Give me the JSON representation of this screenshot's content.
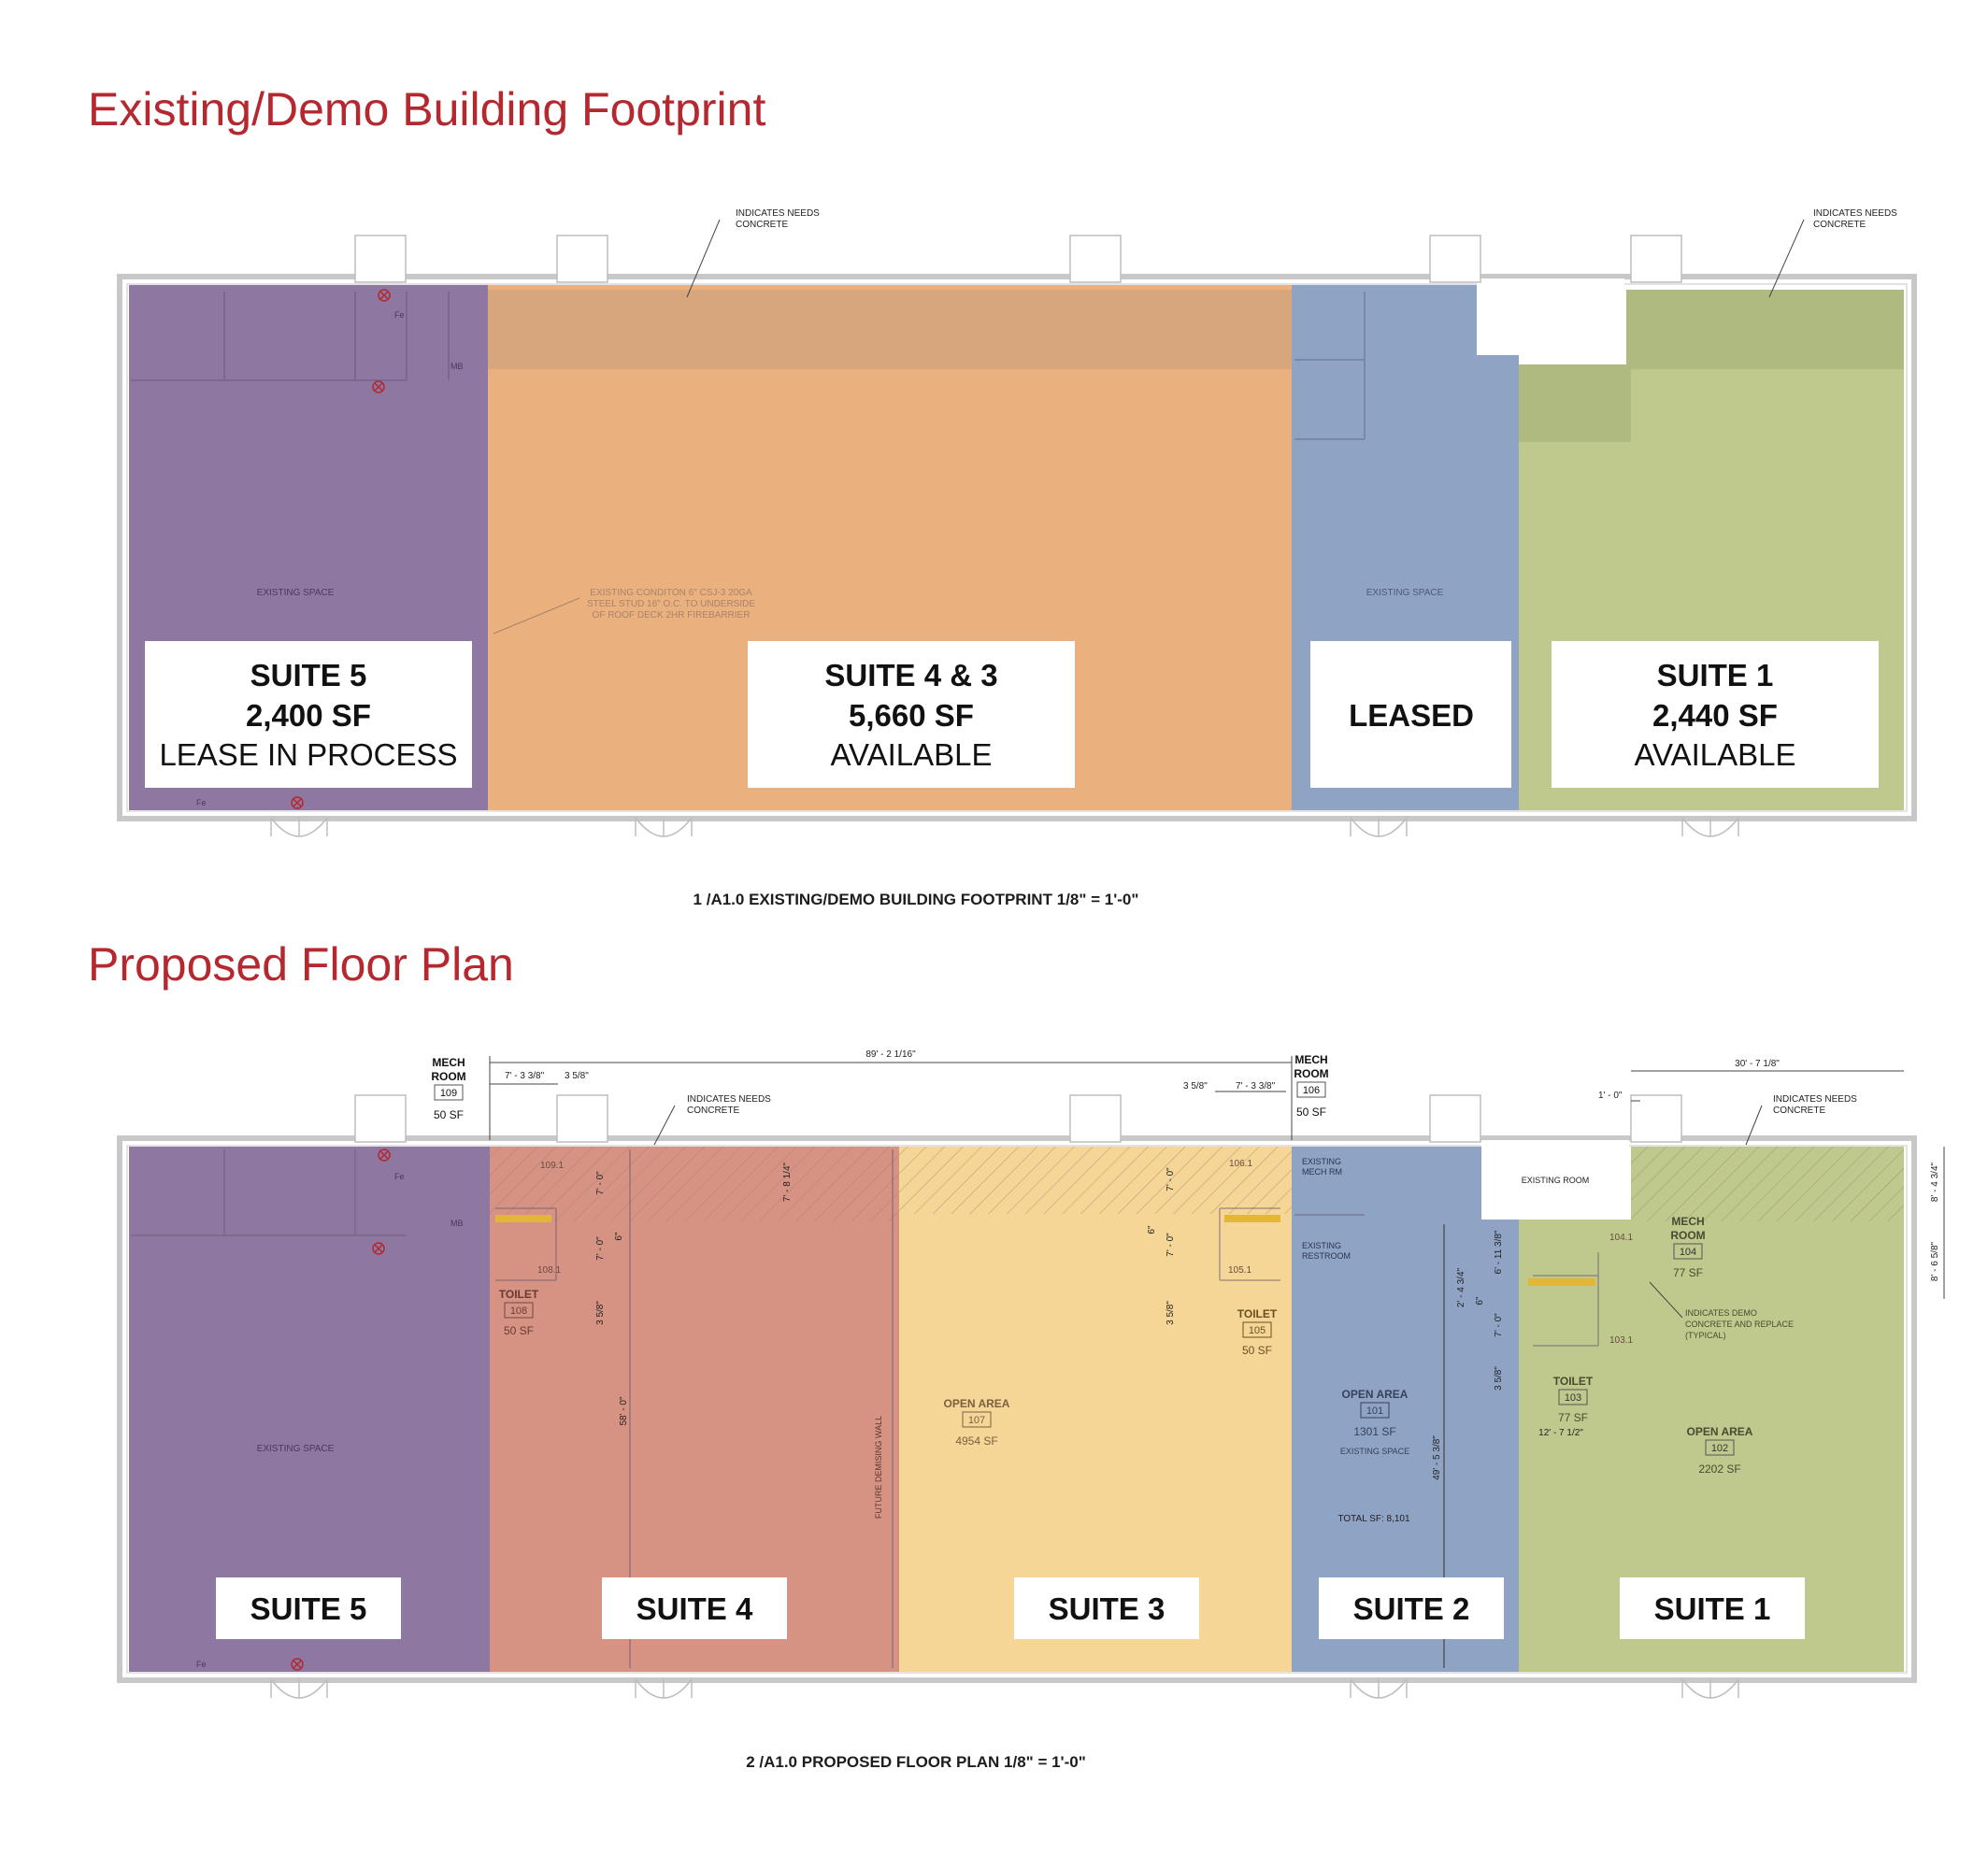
{
  "colors": {
    "title": "#b5282f",
    "purple": "#8e78a2",
    "orange": "#eab17e",
    "orange_band": "#d7a67d",
    "blue": "#8fa3c4",
    "green": "#bfc98d",
    "green_band": "#a9b47c",
    "salmon": "#d69384",
    "yellow": "#f5d697"
  },
  "existing": {
    "title": "Existing/Demo Building Footprint",
    "caption": "1 /A1.0  EXISTING/DEMO BUILDING FOOTPRINT  1/8\" = 1'-0\"",
    "notes": {
      "needs_concrete_1a": "INDICATES NEEDS",
      "needs_concrete_1b": "CONCRETE",
      "needs_concrete_2a": "INDICATES NEEDS",
      "needs_concrete_2b": "CONCRETE",
      "existing_space_1": "EXISTING SPACE",
      "existing_space_2": "EXISTING SPACE",
      "condition_1": "EXISTING CONDITON 6\" CSJ-3 20GA",
      "condition_2": "STEEL STUD 16\" O.C. TO UNDERSIDE",
      "condition_3": "OF ROOF DECK 2HR FIREBARRIER",
      "fe": "Fe",
      "fe2": "Fe",
      "mb": "MB"
    },
    "suites": {
      "s5": {
        "name": "SUITE 5",
        "area": "2,400 SF",
        "status": "LEASE IN PROCESS"
      },
      "s43": {
        "name": "SUITE 4 & 3",
        "area": "5,660 SF",
        "status": "AVAILABLE"
      },
      "leased": {
        "name": "LEASED"
      },
      "s1": {
        "name": "SUITE 1",
        "area": "2,440 SF",
        "status": "AVAILABLE"
      }
    }
  },
  "proposed": {
    "title": "Proposed Floor Plan",
    "caption": "2 /A1.0  PROPOSED FLOOR PLAN  1/8\" = 1'-0\"",
    "suites": {
      "s5": "SUITE 5",
      "s4": "SUITE 4",
      "s3": "SUITE 3",
      "s2": "SUITE 2",
      "s1": "SUITE 1"
    },
    "rooms": {
      "mech109": {
        "l1": "MECH",
        "l2": "ROOM",
        "num": "109",
        "area": "50 SF"
      },
      "mech106": {
        "l1": "MECH",
        "l2": "ROOM",
        "num": "106",
        "area": "50 SF"
      },
      "mech104": {
        "l1": "MECH",
        "l2": "ROOM",
        "num": "104",
        "area": "77 SF"
      },
      "toilet108": {
        "name": "TOILET",
        "num": "108",
        "area": "50 SF"
      },
      "toilet105": {
        "name": "TOILET",
        "num": "105",
        "area": "50 SF"
      },
      "toilet103": {
        "name": "TOILET",
        "num": "103",
        "area": "77 SF"
      },
      "open107": {
        "name": "OPEN AREA",
        "num": "107",
        "area": "4954 SF"
      },
      "open101": {
        "name": "OPEN AREA",
        "num": "101",
        "area": "1301 SF",
        "sub": "EXISTING SPACE"
      },
      "open102": {
        "name": "OPEN AREA",
        "num": "102",
        "area": "2202 SF"
      }
    },
    "doors": {
      "d1091": "109.1",
      "d1061": "106.1",
      "d1081": "108.1",
      "d1051": "105.1",
      "d1041": "104.1",
      "d1031": "103.1"
    },
    "dims": {
      "overall": "89' - 2 1/16\"",
      "d_733_left": "7' - 3 3/8\"",
      "d_358_left": "3 5/8\"",
      "d_358_right": "3 5/8\"",
      "d_733_right": "7' - 3 3/8\"",
      "d_3078": "30' - 7 1/8\"",
      "d_10": "1' - 0\"",
      "d_70a": "7' - 0\"",
      "d_70b": "7' - 0\"",
      "d_6a": "6\"",
      "d_358v": "3 5/8\"",
      "d_581": "7' - 8 1/4\"",
      "d_580": "58' - 0\"",
      "d_70c": "7' - 0\"",
      "d_70d": "7' - 0\"",
      "d_6b": "6\"",
      "d_358v2": "3 5/8\"",
      "d_234": "2' - 4 3/4\"",
      "d_6c": "6\"",
      "d_6118": "6' - 11 3/8\"",
      "d_70e": "7' - 0\"",
      "d_358v3": "3 5/8\"",
      "d_4958": "49' - 5 3/8\"",
      "d_1272": "12' - 7 1/2\"",
      "d_8434": "8' - 4 3/4\"",
      "d_8658": "8' - 6 5/8\""
    },
    "notes": {
      "needs_concrete_1a": "INDICATES NEEDS",
      "needs_concrete_1b": "CONCRETE",
      "needs_concrete_2a": "INDICATES NEEDS",
      "needs_concrete_2b": "CONCRETE",
      "existing_mech_1": "EXISTING",
      "existing_mech_2": "MECH RM",
      "existing_rest_1": "EXISTING",
      "existing_rest_2": "RESTROOM",
      "existing_room": "EXISTING ROOM",
      "existing_space": "EXISTING SPACE",
      "total_sf": "TOTAL SF: 8,101",
      "demising": "FUTURE DEMISING WALL",
      "demo_1": "INDICATES DEMO",
      "demo_2": "CONCRETE AND REPLACE",
      "demo_3": "(TYPICAL)",
      "fe": "Fe",
      "fe2": "Fe",
      "mb": "MB"
    }
  }
}
